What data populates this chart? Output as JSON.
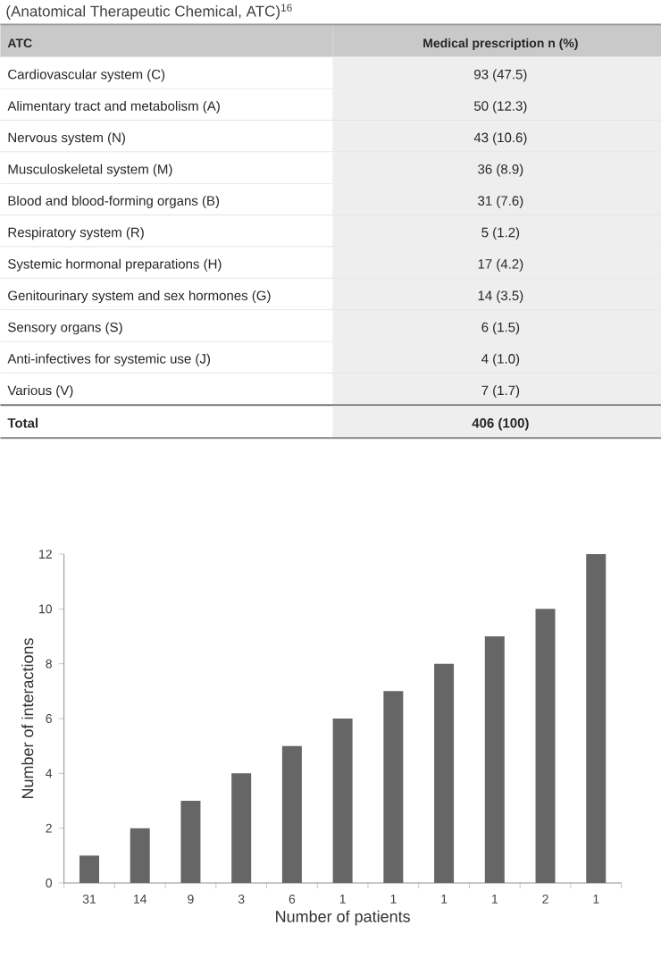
{
  "chart_data": [
    {
      "type": "other",
      "title": "(Anatomical Therapeutic Chemical, ATC)$^{16}$",
      "annotations": [
        "ATC",
        "Medical prescription n (%)",
        "Cardiovascular system (C)",
        "93 (47.5)",
        "Alimentary tract and metabolism (A)",
        "50 (12.3)",
        "Nervous system (N)",
        "43 (10.6)",
        "Musculoskeletal system (M)",
        "36 (8.9)",
        "Blood and blood-forming organs (B)",
        "31 (7.6)",
        "Respiratory system (R)",
        "5 (1.2)",
        "Systemic hormonal preparations (H)",
        "17 (4.2)",
        "Genitourinary system and sex hormones (G)",
        "14 (3.5)",
        "Sensory organs (S)",
        "6 (1.5)",
        "Anti-infectives for systemic use (J)",
        "4 (1.0)",
        "Various (V)",
        "7 (1.7)",
        "Total",
        "406 (100)"
      ]
    },
    {
      "type": "bar",
      "xlabel": "Number of patients",
      "ylabel": "Number of interactions",
      "categories": [
        "31",
        "14",
        "9",
        "3",
        "6",
        "1",
        "1",
        "1",
        "1",
        "2",
        "1"
      ],
      "values": [
        1,
        2,
        3,
        4,
        5,
        6,
        7,
        8,
        9,
        10,
        12
      ],
      "color": "#666666",
      "ylim": [
        0,
        12
      ],
      "yticks": [
        0,
        2,
        4,
        6,
        8,
        10,
        12
      ]
    }
  ]
}
